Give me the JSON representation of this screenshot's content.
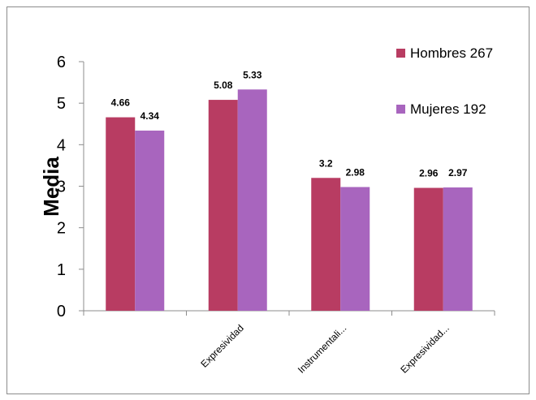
{
  "chart_data": {
    "type": "bar",
    "title": "",
    "xlabel": "",
    "ylabel": "Media",
    "ylim": [
      0,
      6
    ],
    "yticks": [
      0,
      1,
      2,
      3,
      4,
      5,
      6
    ],
    "categories": [
      "",
      "Expresividad",
      "Instrumentali...",
      "Expresividad..."
    ],
    "series": [
      {
        "name": "Hombres 267",
        "color": "#b83c62",
        "values": [
          4.66,
          5.08,
          3.2,
          2.96
        ],
        "labels": [
          "4.66",
          "5.08",
          "3.2",
          "2.96"
        ]
      },
      {
        "name": "Mujeres 192",
        "color": "#a865be",
        "values": [
          4.34,
          5.33,
          2.98,
          2.97
        ],
        "labels": [
          "4.34",
          "5.33",
          "2.98",
          "2.97"
        ]
      }
    ],
    "legend_position": "right",
    "grid": false
  }
}
